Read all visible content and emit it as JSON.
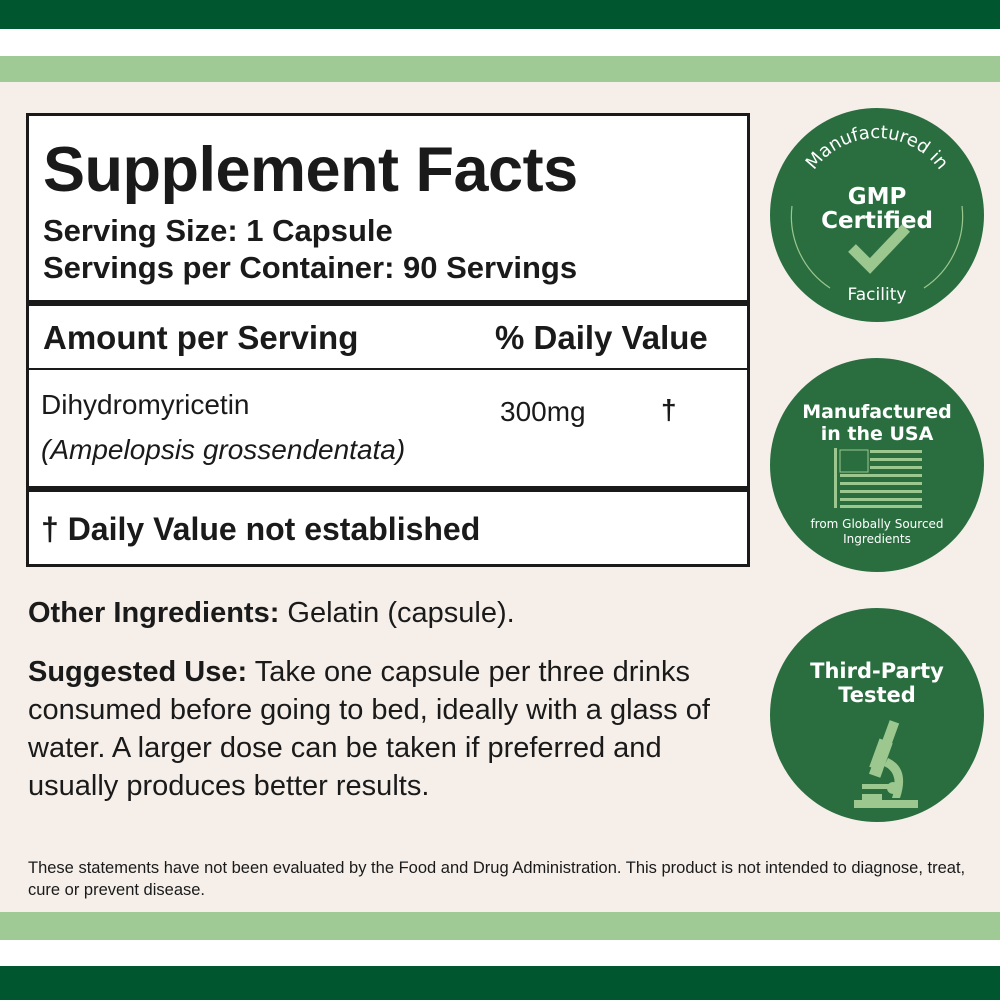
{
  "colors": {
    "dark_green": "#00572f",
    "light_green": "#9fc995",
    "badge_green": "#2a6e40",
    "badge_accent": "#9cc78f",
    "background": "#f6efe9"
  },
  "facts": {
    "title": "Supplement Facts",
    "serving_size": "Serving Size: 1 Capsule",
    "servings_per_container": "Servings per Container: 90 Servings",
    "header_amount": "Amount per Serving",
    "header_dv": "% Daily Value",
    "ingredient_name": "Dihydromyricetin",
    "ingredient_source": "(Ampelopsis grossendentata)",
    "ingredient_amount": "300mg",
    "ingredient_dv": "†",
    "footnote": "† Daily Value not established"
  },
  "other_ingredients": {
    "label": "Other Ingredients:",
    "text": " Gelatin (capsule)."
  },
  "suggested_use": {
    "label": "Suggested Use:",
    "text": " Take one capsule per three drinks consumed before going to bed, ideally with a glass of water. A larger dose can be taken if preferred and usually produces better results."
  },
  "disclaimer": "These statements have not been evaluated by the Food and Drug Administration. This product is not intended to diagnose, treat, cure or prevent disease.",
  "badges": [
    {
      "top_arc": "Manufactured in",
      "line1": "GMP",
      "line2": "Certified",
      "bottom_arc": "Facility",
      "icon": "checkmark-icon"
    },
    {
      "line1": "Manufactured",
      "line2": "in the USA",
      "sub1": "from Globally Sourced",
      "sub2": "Ingredients",
      "icon": "us-flag-icon"
    },
    {
      "line1": "Third-Party",
      "line2": "Tested",
      "icon": "microscope-icon"
    }
  ]
}
